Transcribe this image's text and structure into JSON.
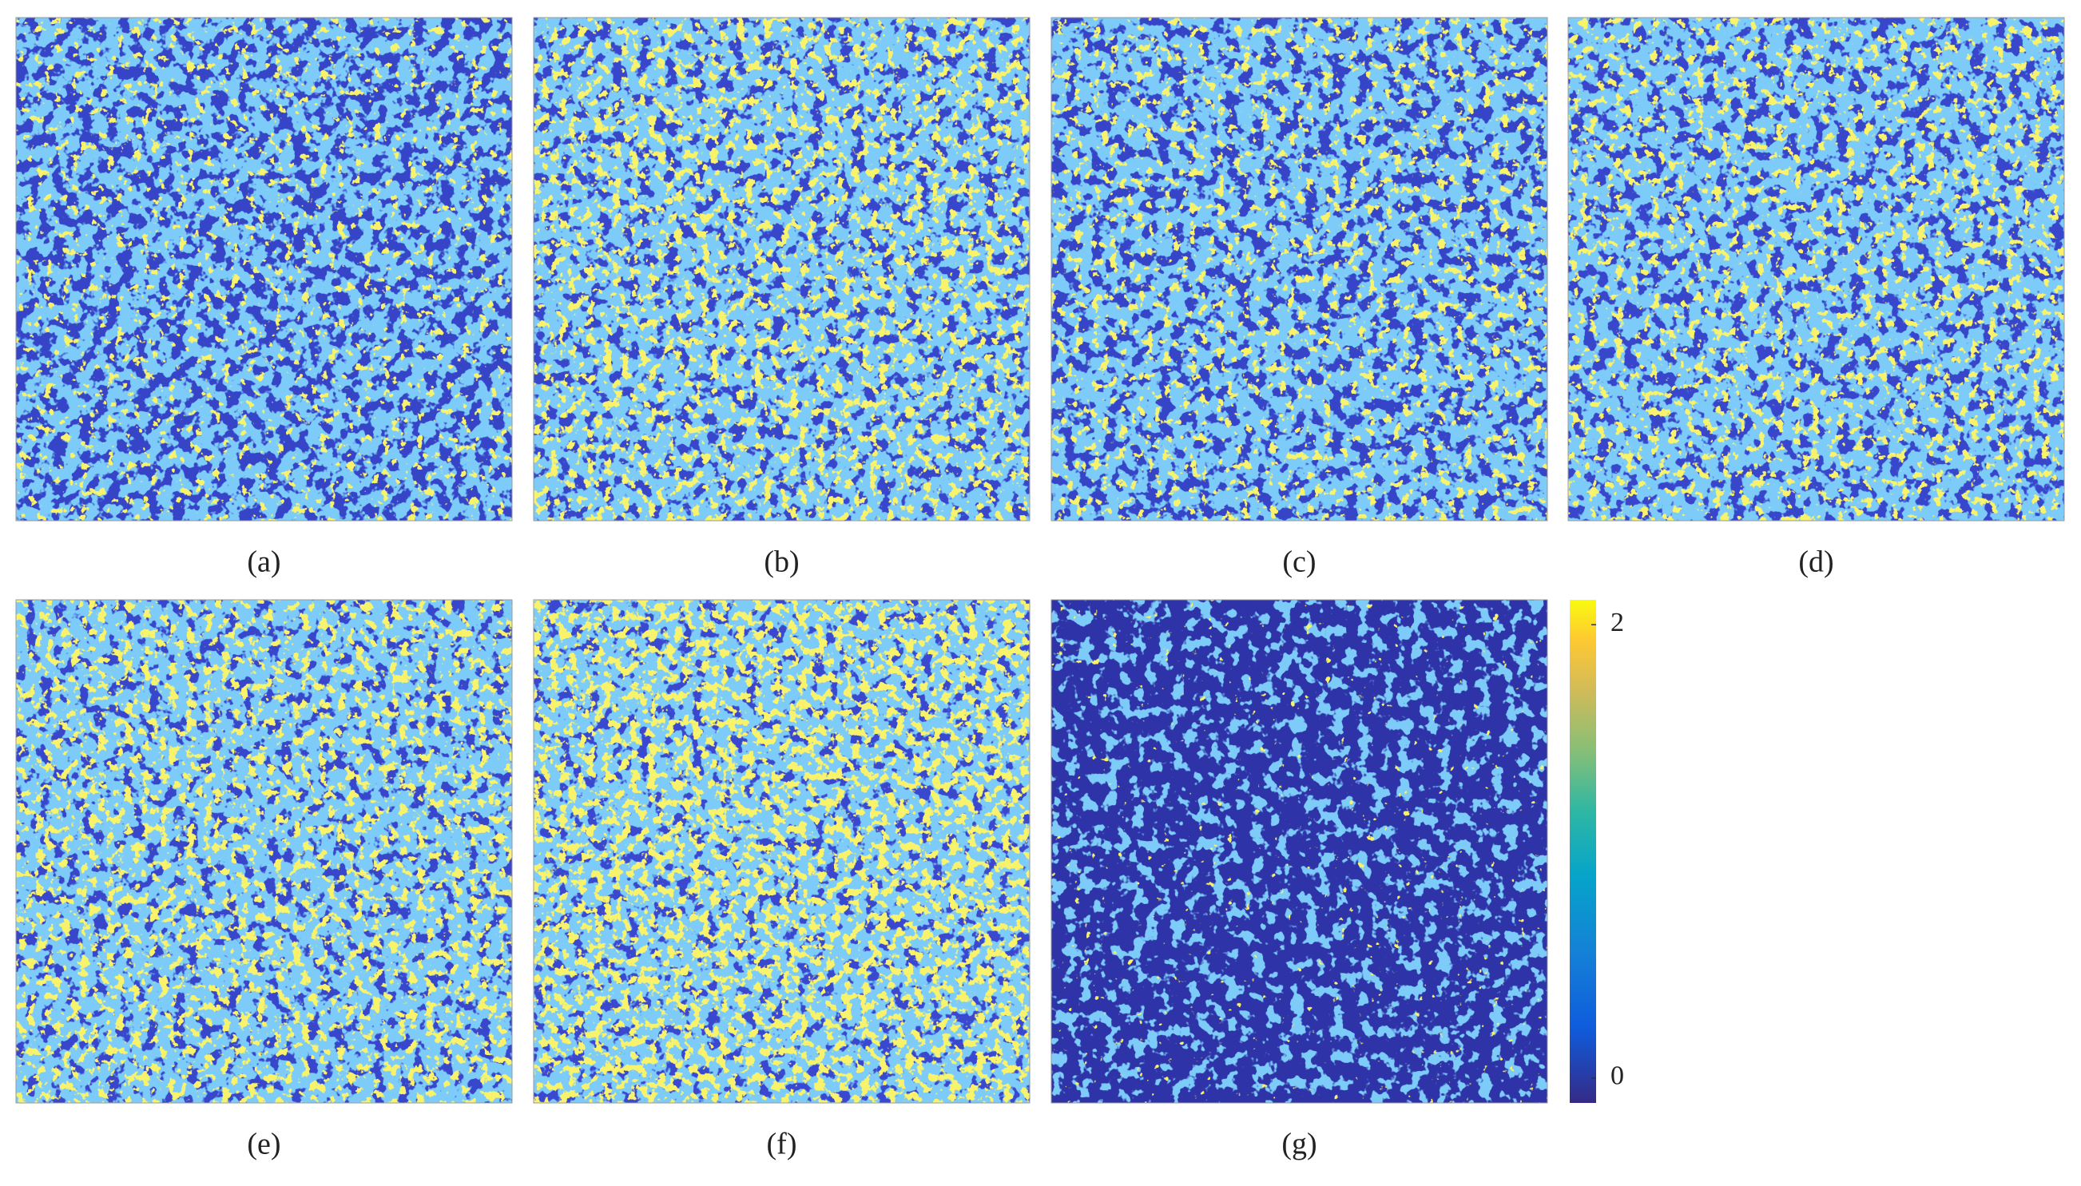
{
  "panels": [
    {
      "label": "(a)"
    },
    {
      "label": "(b)"
    },
    {
      "label": "(c)"
    },
    {
      "label": "(d)"
    },
    {
      "label": "(e)"
    },
    {
      "label": "(f)"
    },
    {
      "label": "(g)"
    }
  ],
  "colorbar": {
    "ylim": [
      -0.11,
      2.11
    ],
    "ticks": [
      0,
      2
    ]
  }
}
